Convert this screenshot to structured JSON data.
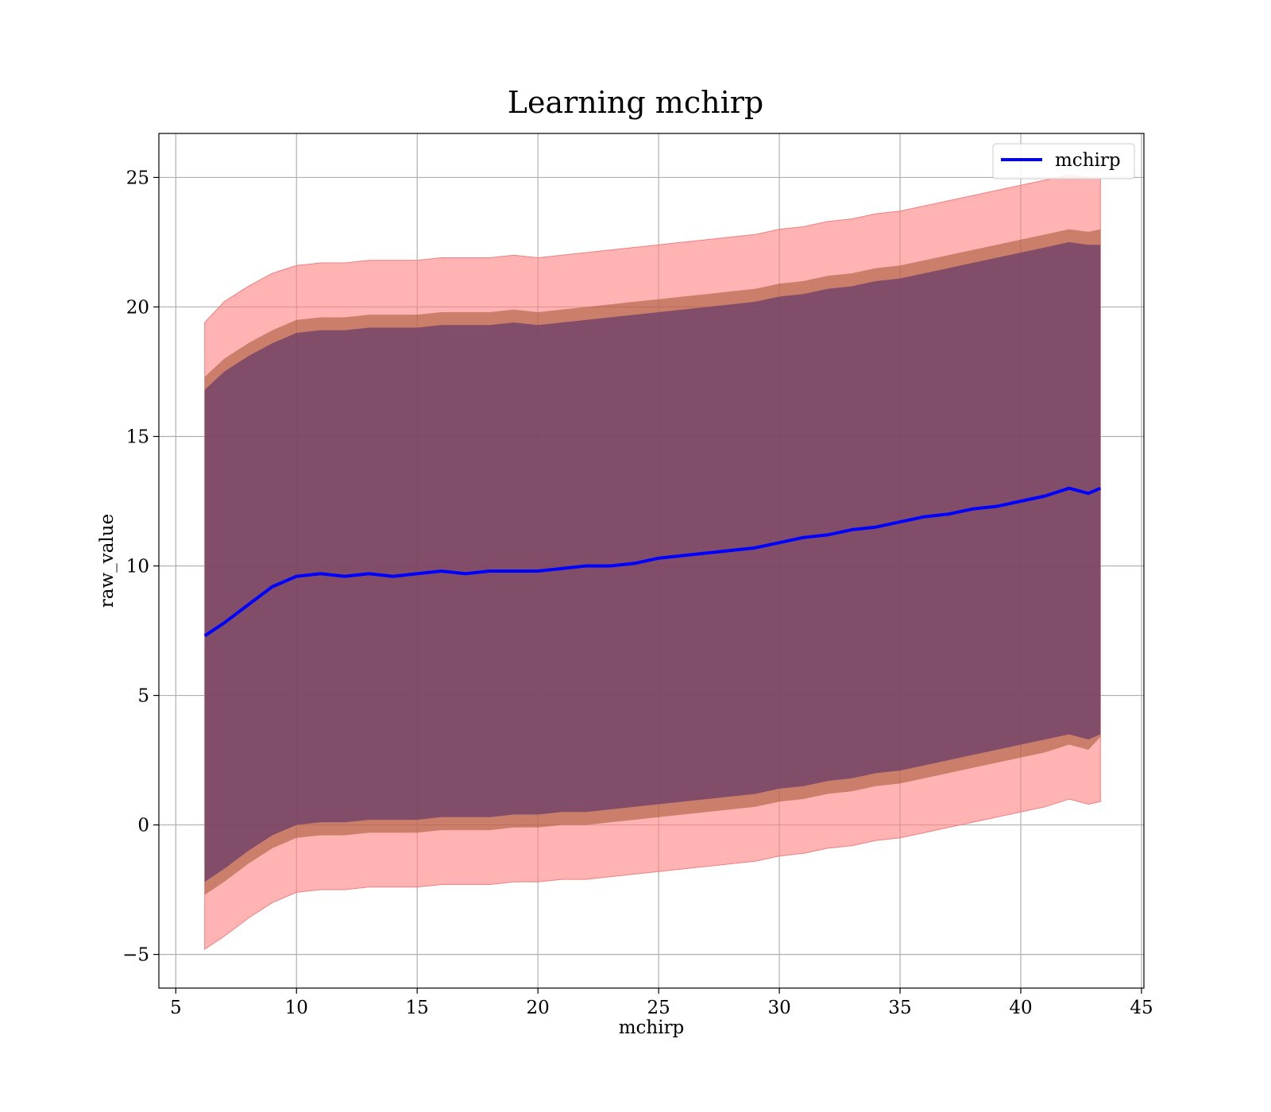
{
  "chart_data": {
    "type": "line",
    "title": "Learning mchirp",
    "xlabel": "mchirp",
    "ylabel": "raw_value",
    "xlim": [
      4.3,
      45.1
    ],
    "ylim": [
      -6.3,
      26.7
    ],
    "xticks": [
      5,
      10,
      15,
      20,
      25,
      30,
      35,
      40,
      45
    ],
    "yticks": [
      -5,
      0,
      5,
      10,
      15,
      20,
      25
    ],
    "xtick_labels": [
      "5",
      "10",
      "15",
      "20",
      "25",
      "30",
      "35",
      "40",
      "45"
    ],
    "ytick_labels": [
      "−5",
      "0",
      "5",
      "10",
      "15",
      "20",
      "25"
    ],
    "grid": true,
    "legend": {
      "placement": "top-right",
      "entries": [
        "mchirp"
      ]
    },
    "colors": {
      "line": "#0000ff",
      "band_outer": "#ff8080",
      "band_middle": "#a0522d",
      "band_inner": "#6a3d6a"
    },
    "x": [
      6.2,
      7.0,
      8.0,
      9.0,
      10.0,
      11.0,
      12.0,
      13.0,
      14.0,
      15.0,
      16.0,
      17.0,
      18.0,
      19.0,
      20.0,
      21.0,
      22.0,
      23.0,
      24.0,
      25.0,
      26.0,
      27.0,
      28.0,
      29.0,
      30.0,
      31.0,
      32.0,
      33.0,
      34.0,
      35.0,
      36.0,
      37.0,
      38.0,
      39.0,
      40.0,
      41.0,
      42.0,
      42.8,
      43.3
    ],
    "series": [
      {
        "name": "mchirp",
        "values": [
          7.3,
          7.8,
          8.5,
          9.2,
          9.6,
          9.7,
          9.6,
          9.7,
          9.6,
          9.7,
          9.8,
          9.7,
          9.8,
          9.8,
          9.8,
          9.9,
          10.0,
          10.0,
          10.1,
          10.3,
          10.4,
          10.5,
          10.6,
          10.7,
          10.9,
          11.1,
          11.2,
          11.4,
          11.5,
          11.7,
          11.9,
          12.0,
          12.2,
          12.3,
          12.5,
          12.7,
          13.0,
          12.8,
          13.0
        ]
      }
    ],
    "bands": [
      {
        "level": "outer",
        "upper": [
          19.4,
          20.2,
          20.8,
          21.3,
          21.6,
          21.7,
          21.7,
          21.8,
          21.8,
          21.8,
          21.9,
          21.9,
          21.9,
          22.0,
          21.9,
          22.0,
          22.1,
          22.2,
          22.3,
          22.4,
          22.5,
          22.6,
          22.7,
          22.8,
          23.0,
          23.1,
          23.3,
          23.4,
          23.6,
          23.7,
          23.9,
          24.1,
          24.3,
          24.5,
          24.7,
          24.9,
          25.1,
          25.0,
          25.0
        ],
        "lower": [
          -4.8,
          -4.3,
          -3.6,
          -3.0,
          -2.6,
          -2.5,
          -2.5,
          -2.4,
          -2.4,
          -2.4,
          -2.3,
          -2.3,
          -2.3,
          -2.2,
          -2.2,
          -2.1,
          -2.1,
          -2.0,
          -1.9,
          -1.8,
          -1.7,
          -1.6,
          -1.5,
          -1.4,
          -1.2,
          -1.1,
          -0.9,
          -0.8,
          -0.6,
          -0.5,
          -0.3,
          -0.1,
          0.1,
          0.3,
          0.5,
          0.7,
          1.0,
          0.8,
          0.9
        ]
      },
      {
        "level": "middle",
        "upper": [
          17.3,
          18.0,
          18.6,
          19.1,
          19.5,
          19.6,
          19.6,
          19.7,
          19.7,
          19.7,
          19.8,
          19.8,
          19.8,
          19.9,
          19.8,
          19.9,
          20.0,
          20.1,
          20.2,
          20.3,
          20.4,
          20.5,
          20.6,
          20.7,
          20.9,
          21.0,
          21.2,
          21.3,
          21.5,
          21.6,
          21.8,
          22.0,
          22.2,
          22.4,
          22.6,
          22.8,
          23.0,
          22.9,
          23.0
        ],
        "lower": [
          -2.7,
          -2.2,
          -1.5,
          -0.9,
          -0.5,
          -0.4,
          -0.4,
          -0.3,
          -0.3,
          -0.3,
          -0.2,
          -0.2,
          -0.2,
          -0.1,
          -0.1,
          0.0,
          0.0,
          0.1,
          0.2,
          0.3,
          0.4,
          0.5,
          0.6,
          0.7,
          0.9,
          1.0,
          1.2,
          1.3,
          1.5,
          1.6,
          1.8,
          2.0,
          2.2,
          2.4,
          2.6,
          2.8,
          3.1,
          2.9,
          3.4
        ]
      },
      {
        "level": "inner",
        "upper": [
          16.8,
          17.5,
          18.1,
          18.6,
          19.0,
          19.1,
          19.1,
          19.2,
          19.2,
          19.2,
          19.3,
          19.3,
          19.3,
          19.4,
          19.3,
          19.4,
          19.5,
          19.6,
          19.7,
          19.8,
          19.9,
          20.0,
          20.1,
          20.2,
          20.4,
          20.5,
          20.7,
          20.8,
          21.0,
          21.1,
          21.3,
          21.5,
          21.7,
          21.9,
          22.1,
          22.3,
          22.5,
          22.4,
          22.4
        ],
        "lower": [
          -2.2,
          -1.7,
          -1.0,
          -0.4,
          0.0,
          0.1,
          0.1,
          0.2,
          0.2,
          0.2,
          0.3,
          0.3,
          0.3,
          0.4,
          0.4,
          0.5,
          0.5,
          0.6,
          0.7,
          0.8,
          0.9,
          1.0,
          1.1,
          1.2,
          1.4,
          1.5,
          1.7,
          1.8,
          2.0,
          2.1,
          2.3,
          2.5,
          2.7,
          2.9,
          3.1,
          3.3,
          3.5,
          3.3,
          3.5
        ]
      }
    ]
  }
}
